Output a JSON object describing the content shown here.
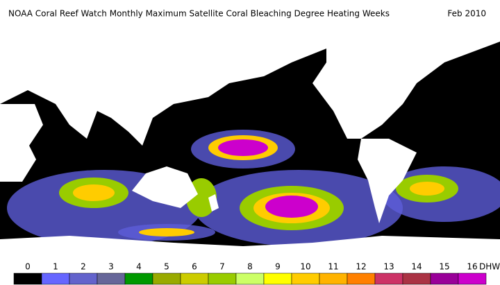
{
  "header": {
    "title": "NOAA Coral Reef Watch Monthly Maximum Satellite Coral Bleaching Degree Heating Weeks",
    "date": "Feb 2010"
  },
  "legend": {
    "unit": "DHW",
    "ticks": [
      0,
      1,
      2,
      3,
      4,
      5,
      6,
      7,
      8,
      9,
      10,
      11,
      12,
      13,
      14,
      15,
      16
    ],
    "colors": [
      "#000000",
      "#6666ff",
      "#6363cc",
      "#666699",
      "#009900",
      "#99aa00",
      "#cccc00",
      "#99cc00",
      "#ccff66",
      "#ffff00",
      "#ffcc00",
      "#ffb300",
      "#ff8000",
      "#cc3366",
      "#aa3344",
      "#990099",
      "#cc00cc"
    ]
  }
}
